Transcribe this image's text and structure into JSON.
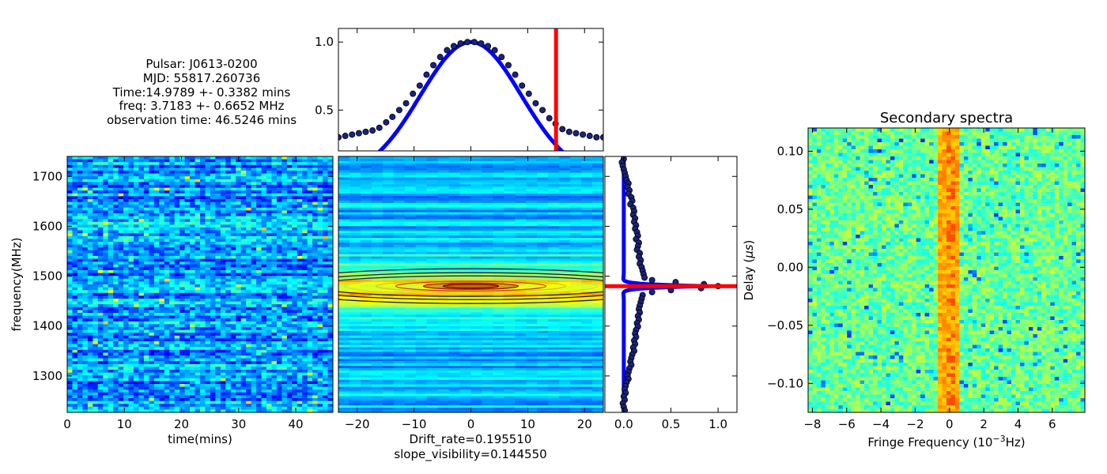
{
  "info": {
    "pulsar": "Pulsar: J0613-0200",
    "mjd": "MJD: 55817.260736",
    "time": "Time:14.9789 +- 0.3382 mins",
    "freq": "freq: 3.7183 +- 0.6652 MHz",
    "obs": "observation time: 46.5246 mins"
  },
  "colors": {
    "fit_line": "#0000ff",
    "markers": "#1a237e",
    "marker_line": "#000000",
    "cursor": "#ff0000",
    "cmap": "jet"
  },
  "chart_data": [
    {
      "id": "dynamic_spectrum",
      "type": "heatmap",
      "xlabel": "time(mins)",
      "ylabel": "frequency(MHz)",
      "xlim": [
        0,
        46.5
      ],
      "ylim": [
        1227,
        1740
      ],
      "xticks": [
        0,
        10,
        20,
        30,
        40
      ],
      "yticks": [
        1300,
        1400,
        1500,
        1600,
        1700
      ],
      "cmap": "jet",
      "value_level": 0.2
    },
    {
      "id": "acf_2d",
      "type": "heatmap",
      "xlabel": "Drift_rate=0.195510",
      "xlabel2": "slope_visibility=0.144550",
      "xlim": [
        -23.3,
        23.3
      ],
      "xticks": [
        -20,
        -10,
        0,
        10,
        20
      ],
      "contour_center": [
        0,
        1480
      ],
      "cmap": "jet"
    },
    {
      "id": "time_acf_cut",
      "type": "line",
      "xlim": [
        -23.3,
        23.3
      ],
      "ylim": [
        0.2,
        1.1
      ],
      "yticks": [
        0.5,
        1.0
      ],
      "fit_sigma": 8.9,
      "cursor_x": 14.98,
      "points": {
        "x": [
          -23.3,
          -22.1,
          -20.9,
          -19.7,
          -18.5,
          -17.3,
          -16.1,
          -14.9,
          -13.8,
          -12.6,
          -11.4,
          -10.2,
          -9.0,
          -7.8,
          -6.6,
          -5.4,
          -4.2,
          -3.0,
          -1.8,
          -0.6,
          0.6,
          1.8,
          3.0,
          4.2,
          5.4,
          6.6,
          7.8,
          9.0,
          10.2,
          11.4,
          12.6,
          13.8,
          14.9,
          16.1,
          17.3,
          18.5,
          19.7,
          20.9,
          22.1,
          23.3
        ],
        "y": [
          0.3,
          0.31,
          0.32,
          0.33,
          0.34,
          0.35,
          0.37,
          0.41,
          0.45,
          0.5,
          0.55,
          0.62,
          0.68,
          0.76,
          0.83,
          0.89,
          0.94,
          0.97,
          0.99,
          1.0,
          1.0,
          0.99,
          0.97,
          0.94,
          0.89,
          0.83,
          0.76,
          0.68,
          0.62,
          0.55,
          0.5,
          0.44,
          0.4,
          0.36,
          0.34,
          0.33,
          0.32,
          0.31,
          0.3,
          0.3
        ]
      }
    },
    {
      "id": "freq_acf_cut",
      "type": "scatter",
      "xlim": [
        -0.2,
        1.2
      ],
      "ylim": [
        1227,
        1740
      ],
      "xticks": [
        0.0,
        0.5,
        1.0
      ],
      "cursor_y": 1480,
      "fit_width": 3.7,
      "points": {
        "y": [
          1735,
          1728,
          1721,
          1714,
          1707,
          1700,
          1693,
          1686,
          1679,
          1672,
          1665,
          1658,
          1651,
          1644,
          1637,
          1630,
          1623,
          1616,
          1609,
          1602,
          1595,
          1588,
          1581,
          1574,
          1567,
          1560,
          1553,
          1546,
          1539,
          1532,
          1525,
          1518,
          1511,
          1504,
          1497,
          1492,
          1488,
          1484,
          1480,
          1476,
          1472,
          1468,
          1462,
          1455,
          1448,
          1441,
          1434,
          1427,
          1420,
          1413,
          1406,
          1399,
          1392,
          1385,
          1378,
          1371,
          1364,
          1357,
          1350,
          1343,
          1336,
          1329,
          1322,
          1315,
          1308,
          1301,
          1294,
          1287,
          1280,
          1273,
          1266,
          1259,
          1252,
          1245,
          1238,
          1231
        ],
        "x": [
          0.0,
          -0.02,
          -0.01,
          0.0,
          0.01,
          0.02,
          0.03,
          0.05,
          0.04,
          0.06,
          0.05,
          0.08,
          0.09,
          0.07,
          0.1,
          0.11,
          0.1,
          0.12,
          0.11,
          0.13,
          0.12,
          0.14,
          0.15,
          0.13,
          0.16,
          0.15,
          0.14,
          0.17,
          0.16,
          0.18,
          0.17,
          0.19,
          0.2,
          0.21,
          0.22,
          0.3,
          0.55,
          0.85,
          1.0,
          0.82,
          0.5,
          0.3,
          0.2,
          0.19,
          0.18,
          0.17,
          0.16,
          0.17,
          0.15,
          0.16,
          0.14,
          0.15,
          0.13,
          0.12,
          0.13,
          0.11,
          0.12,
          0.1,
          0.11,
          0.09,
          0.08,
          0.07,
          0.08,
          0.06,
          0.05,
          0.04,
          0.05,
          0.03,
          0.02,
          0.01,
          0.02,
          0.0,
          0.01,
          -0.01,
          0.0,
          0.01
        ]
      }
    },
    {
      "id": "secondary_spectra",
      "type": "heatmap",
      "title": "Secondary spectra",
      "xlabel": "Fringe Frequency (10",
      "xlabel_exp": "−3",
      "xlabel_unit": "Hz)",
      "ylabel": "Delay (",
      "ylabel_mu": "μs",
      "ylabel_end": ")",
      "xlim": [
        -8.25,
        7.9
      ],
      "ylim": [
        -0.125,
        0.12
      ],
      "xticks": [
        -8,
        -6,
        -4,
        -2,
        0,
        2,
        4,
        6
      ],
      "yticks": [
        -0.1,
        -0.05,
        0.0,
        0.05,
        0.1
      ],
      "ytick_labels": [
        "−0.10",
        "−0.05",
        "0.00",
        "0.05",
        "0.10"
      ],
      "xtick_labels": [
        "−8",
        "−6",
        "−4",
        "−2",
        "0",
        "2",
        "4",
        "6"
      ],
      "ridge_x": 0,
      "ridge_halfwidth": 0.7,
      "cmap": "jet"
    }
  ]
}
